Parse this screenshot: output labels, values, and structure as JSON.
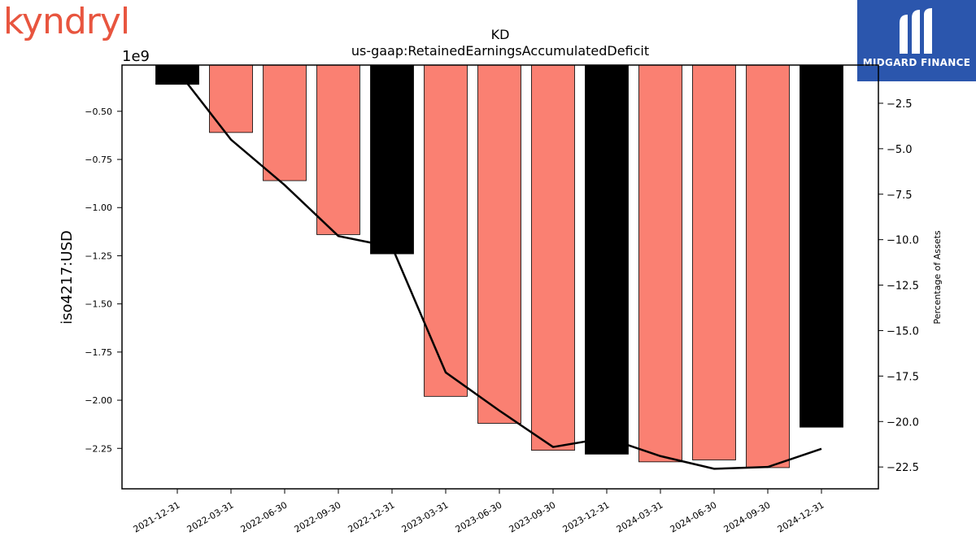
{
  "logos": {
    "left": "kyndryl",
    "right": "MIDGARD FINANCE"
  },
  "chart_data": {
    "type": "bar",
    "title": "KD",
    "subtitle": "us-gaap:RetainedEarningsAccumulatedDeficit",
    "ylabel": "iso4217:USD",
    "ylabel_right": "Percentage of Assets",
    "y_offset_label": "1e9",
    "categories": [
      "2021-12-31",
      "2022-03-31",
      "2022-06-30",
      "2022-09-30",
      "2022-12-31",
      "2023-03-31",
      "2023-06-30",
      "2023-09-30",
      "2023-12-31",
      "2024-03-31",
      "2024-06-30",
      "2024-09-30",
      "2024-12-31"
    ],
    "period_type": [
      "annual",
      "quarter",
      "quarter",
      "quarter",
      "annual",
      "quarter",
      "quarter",
      "quarter",
      "annual",
      "quarter",
      "quarter",
      "quarter",
      "annual"
    ],
    "series": [
      {
        "axis": "left",
        "type": "bar",
        "values": [
          -0.36,
          -0.61,
          -0.86,
          -1.14,
          -1.24,
          -1.98,
          -2.12,
          -2.26,
          -2.28,
          -2.32,
          -2.31,
          -2.35,
          -2.14
        ]
      },
      {
        "axis": "right",
        "type": "line",
        "values": [
          -0.7,
          -4.5,
          -7.0,
          -9.8,
          -10.4,
          -17.3,
          -19.4,
          -21.4,
          -20.9,
          -21.9,
          -22.6,
          -22.5,
          -21.5
        ]
      }
    ],
    "ylim": [
      -2.46,
      -0.26
    ],
    "ylim_right": [
      -23.7,
      -0.4
    ],
    "yticks": [
      -0.5,
      -0.75,
      -1.0,
      -1.25,
      -1.5,
      -1.75,
      -2.0,
      -2.25
    ],
    "yticks_right": [
      -2.5,
      -5.0,
      -7.5,
      -10.0,
      -12.5,
      -15.0,
      -17.5,
      -20.0,
      -22.5
    ],
    "colors": {
      "quarter": "#fa8072",
      "annual": "#000000",
      "line": "#000000"
    }
  }
}
